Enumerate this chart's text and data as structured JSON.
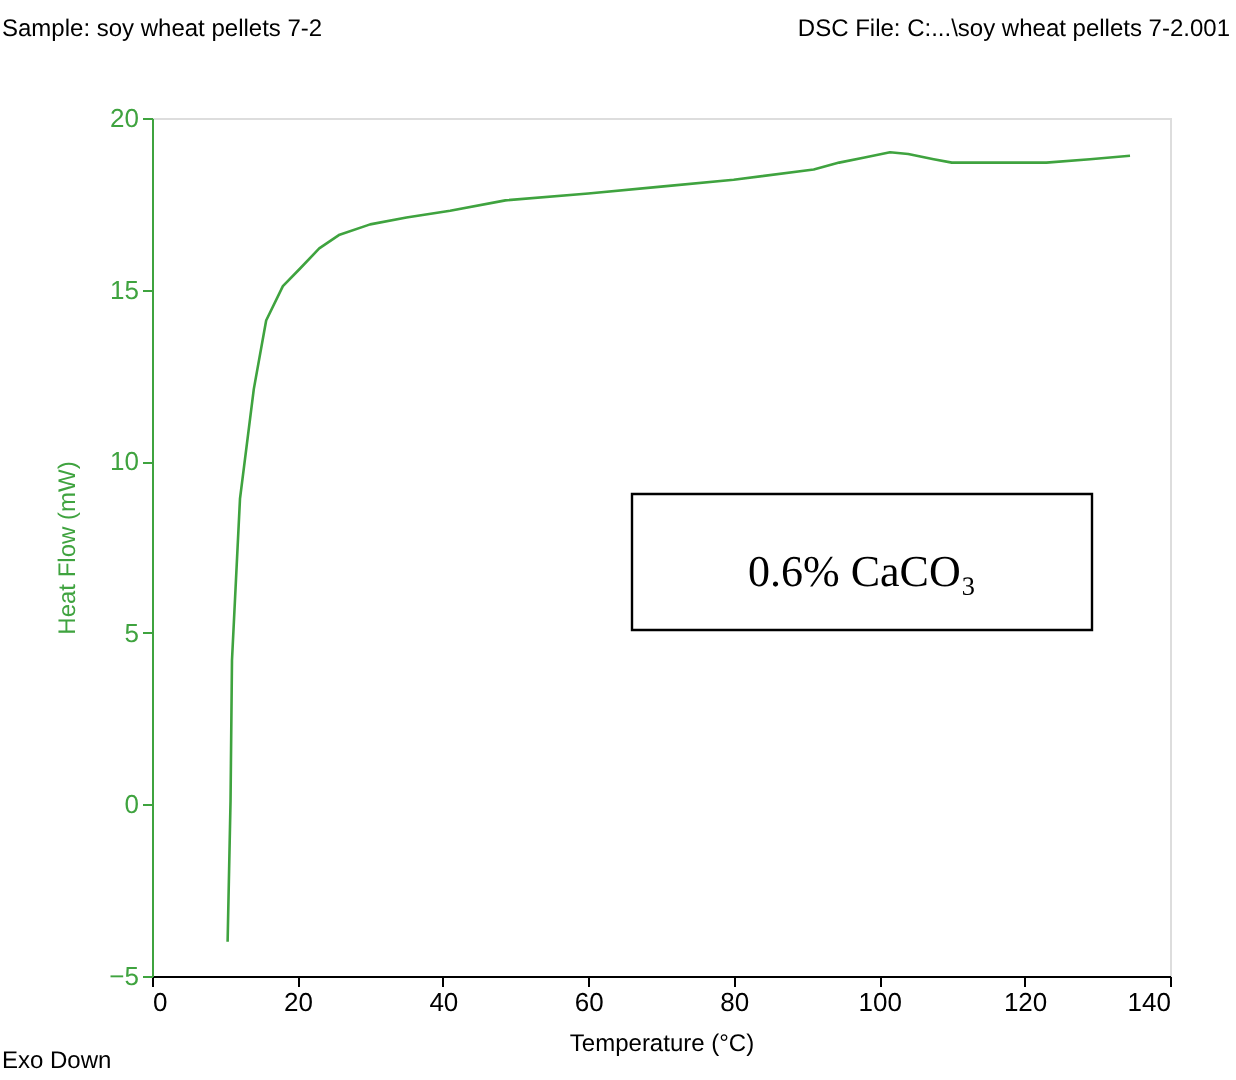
{
  "chart_data": {
    "type": "line",
    "xlabel": "Temperature (°C)",
    "ylabel": "Heat Flow (mW)",
    "x": [
      10.4,
      10.8,
      11,
      12.1,
      14,
      15.7,
      18,
      20.3,
      23,
      25.8,
      30,
      35,
      41,
      48.6,
      60,
      70,
      80,
      91,
      94.5,
      98,
      101.5,
      104,
      107.5,
      110,
      116,
      123,
      129,
      134.5
    ],
    "series": [
      {
        "color": "#3fa33f",
        "values": [
          -4,
          0.1,
          4.2,
          8.9,
          12.1,
          14.1,
          15.1,
          15.6,
          16.2,
          16.6,
          16.9,
          17.1,
          17.3,
          17.6,
          17.8,
          18,
          18.2,
          18.5,
          18.7,
          18.85,
          19.0,
          18.95,
          18.8,
          18.7,
          18.7,
          18.7,
          18.8,
          18.9
        ]
      }
    ],
    "xlim": [
      0,
      140
    ],
    "xticks": [
      0,
      20,
      40,
      60,
      80,
      100,
      120,
      140
    ],
    "ylim": [
      -5,
      20
    ],
    "yticks": [
      -5,
      0,
      5,
      10,
      15,
      20
    ],
    "grid": false,
    "legend": false,
    "marker": "none",
    "line_style": "solid",
    "annotations": [
      "Sample: soy wheat pellets 7-2",
      "DSC File: C:...\\soy wheat pellets 7-2.001",
      "Exo Down",
      "0.6% CaCO₃"
    ]
  }
}
